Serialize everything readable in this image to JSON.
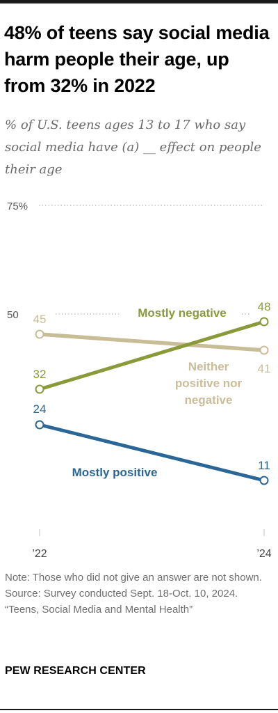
{
  "title": "48% of teens say social media harm people their age, up from 32% in 2022",
  "subtitle": "% of U.S. teens ages 13 to 17 who say social media have (a) __ effect on people their age",
  "chart_data": {
    "type": "line",
    "x": [
      "’22",
      "’24"
    ],
    "y_ticks": [
      "75%",
      "50"
    ],
    "series": [
      {
        "name": "Mostly negative",
        "values": [
          32,
          48
        ],
        "color": "#8a9a3a"
      },
      {
        "name": "Neither positive nor negative",
        "values": [
          45,
          41
        ],
        "color": "#c9bd97"
      },
      {
        "name": "Mostly positive",
        "values": [
          24,
          11
        ],
        "color": "#2a6796"
      }
    ],
    "value_labels": [
      {
        "series": 0,
        "texts": [
          "32",
          "48"
        ]
      },
      {
        "series": 1,
        "texts": [
          "45",
          "41"
        ]
      },
      {
        "series": 2,
        "texts": [
          "24",
          "11"
        ]
      }
    ],
    "series_label_lines": [
      [
        "Mostly negative"
      ],
      [
        "Neither",
        "positive nor",
        "negative"
      ],
      [
        "Mostly positive"
      ]
    ],
    "grid_color": "#b5b5b5",
    "axis_color": "#cccccc",
    "tick_label_color": "#555555"
  },
  "notes": [
    "Note: Those who did not give an answer are not shown.",
    "Source: Survey conducted Sept. 18-Oct. 10, 2024.",
    "“Teens, Social Media and Mental Health”"
  ],
  "brand": "PEW RESEARCH CENTER"
}
